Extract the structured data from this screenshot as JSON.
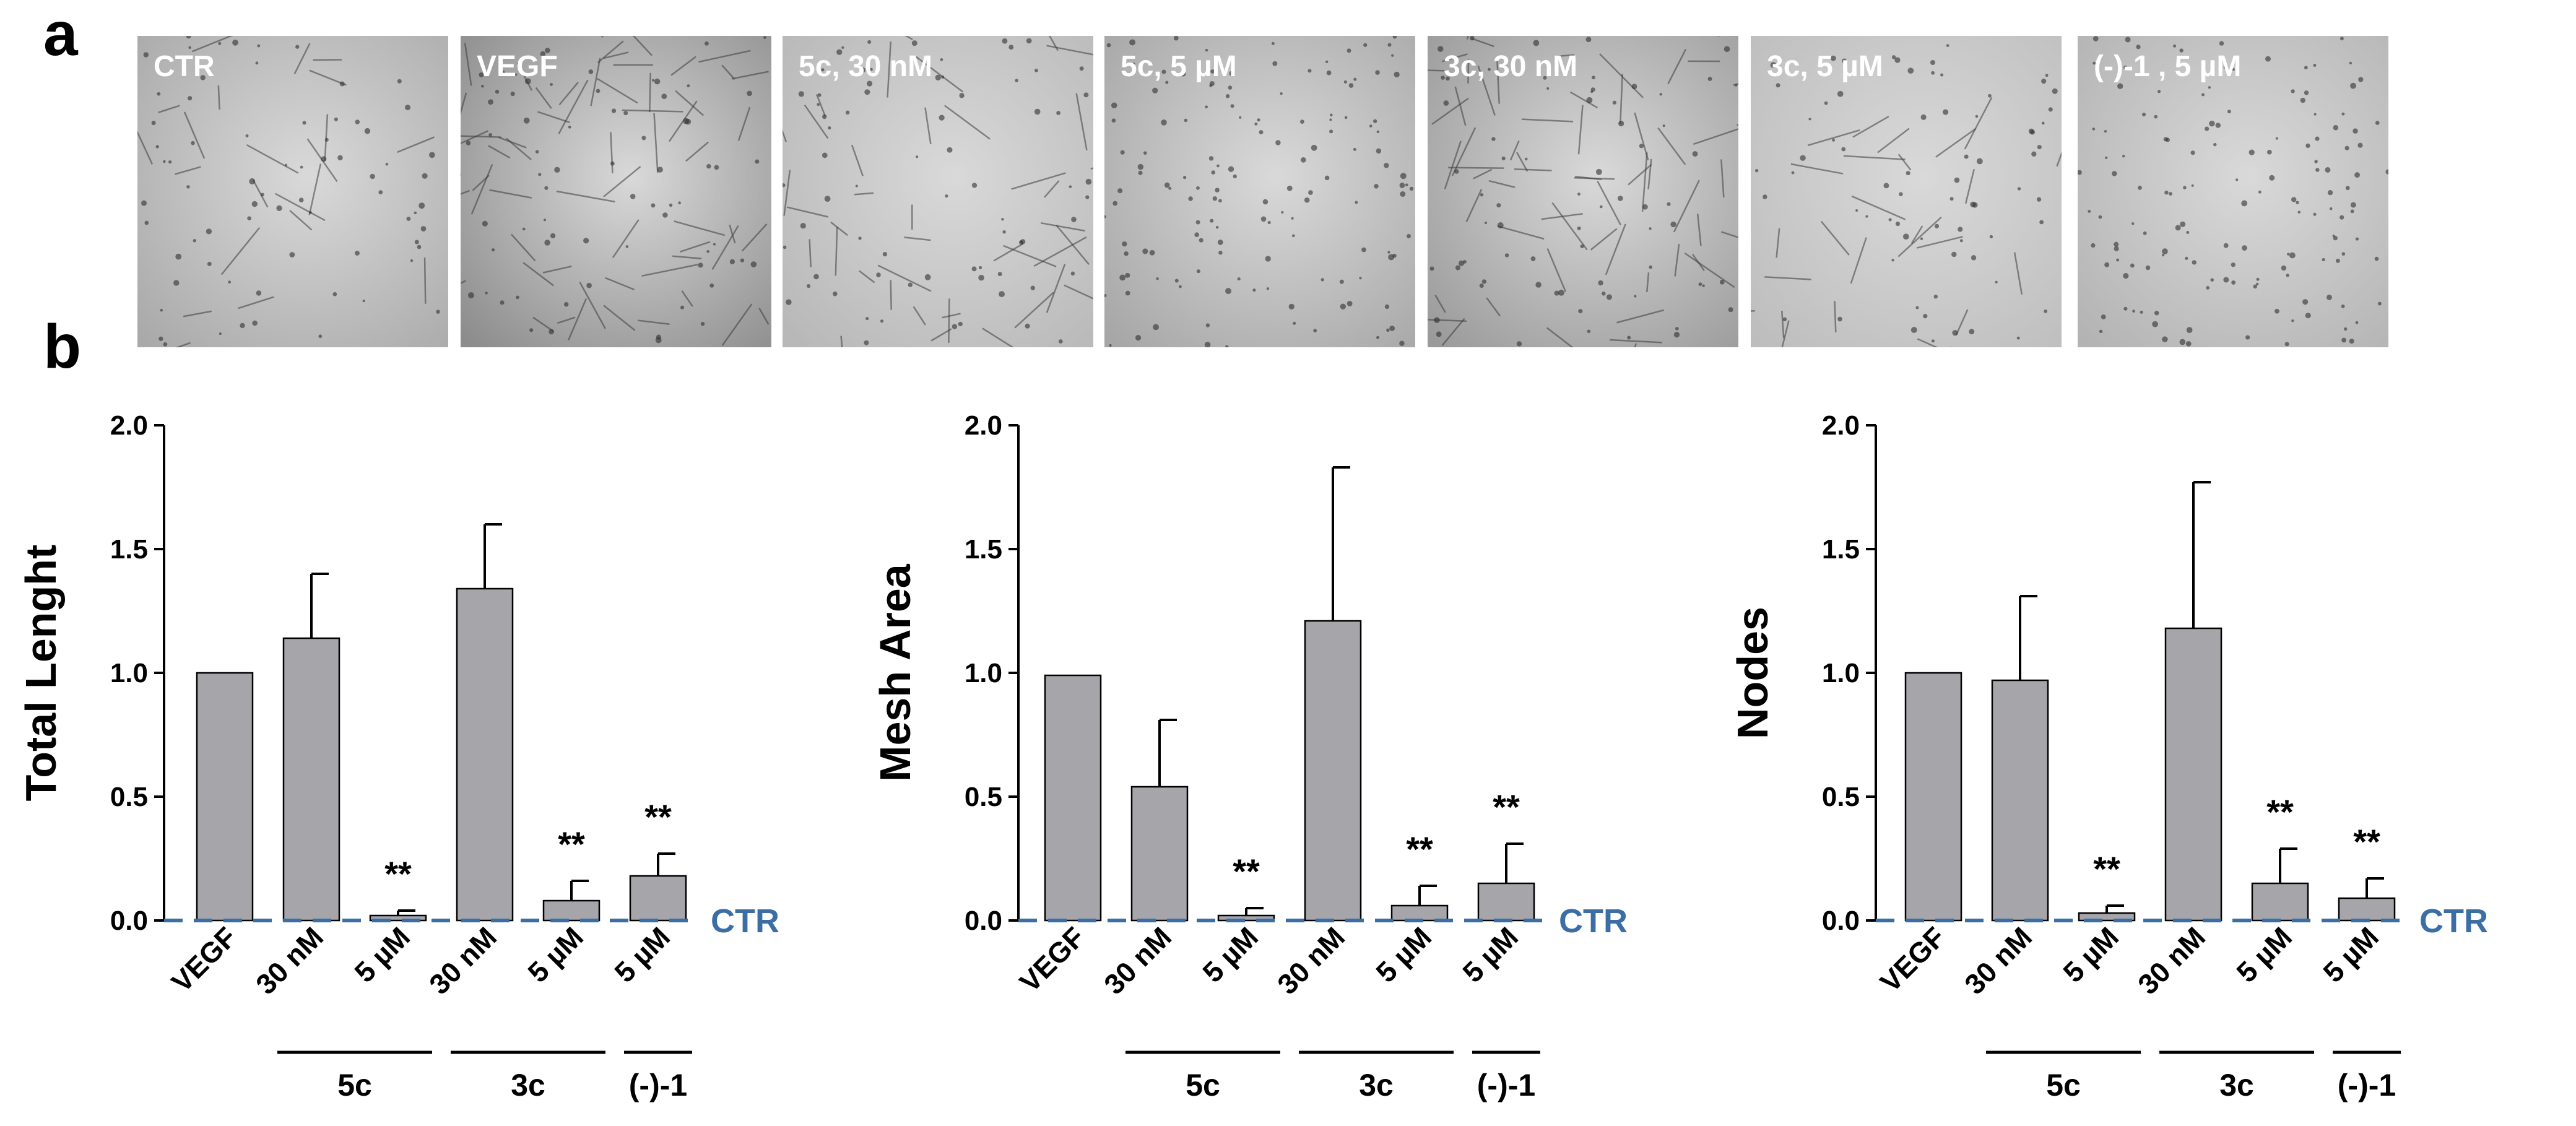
{
  "panel_labels": {
    "a": "a",
    "b": "b"
  },
  "photos": [
    {
      "label": "CTR",
      "tone": "#a9a9a9",
      "network": "sparse"
    },
    {
      "label": "VEGF",
      "tone": "#8c8c8c",
      "network": "dense"
    },
    {
      "label": "5c, 30 nM",
      "tone": "#b7b7b7",
      "network": "medium"
    },
    {
      "label": "5c, 5 µM",
      "tone": "#a6a6a6",
      "network": "dots"
    },
    {
      "label": "3c, 30 nM",
      "tone": "#9a9a9a",
      "network": "dense"
    },
    {
      "label": "3c, 5 µM",
      "tone": "#bdbdbd",
      "network": "partial"
    },
    {
      "label": "(-)-1 , 5 µM",
      "tone": "#b3b3b3",
      "network": "dots"
    }
  ],
  "colors": {
    "bar": "#a5a5aa",
    "ctr_line": "#3a6ea5"
  },
  "chart_data": [
    {
      "type": "bar",
      "ylabel": "Total Lenght",
      "ylim": [
        0,
        2.0
      ],
      "yticks": [
        "0.0",
        "0.5",
        "1.0",
        "1.5",
        "2.0"
      ],
      "reference_line": {
        "value": 0,
        "label": "CTR"
      },
      "categories": [
        "VEGF",
        "30 nM",
        "5 µM",
        "30 nM",
        "5 µM",
        "5 µM"
      ],
      "groups": [
        {
          "label": "5c",
          "span": [
            1,
            2
          ]
        },
        {
          "label": "3c",
          "span": [
            3,
            4
          ]
        },
        {
          "label": "(-)-1",
          "span": [
            5,
            5
          ]
        }
      ],
      "values": [
        1.0,
        1.14,
        0.02,
        1.34,
        0.08,
        0.18
      ],
      "errors": [
        0,
        0.26,
        0.02,
        0.26,
        0.08,
        0.09
      ],
      "significance": [
        "",
        "",
        "**",
        "",
        "**",
        "**"
      ]
    },
    {
      "type": "bar",
      "ylabel": "Mesh Area",
      "ylim": [
        0,
        2.0
      ],
      "yticks": [
        "0.0",
        "0.5",
        "1.0",
        "1.5",
        "2.0"
      ],
      "reference_line": {
        "value": 0,
        "label": "CTR"
      },
      "categories": [
        "VEGF",
        "30 nM",
        "5 µM",
        "30 nM",
        "5 µM",
        "5 µM"
      ],
      "groups": [
        {
          "label": "5c",
          "span": [
            1,
            2
          ]
        },
        {
          "label": "3c",
          "span": [
            3,
            4
          ]
        },
        {
          "label": "(-)-1",
          "span": [
            5,
            5
          ]
        }
      ],
      "values": [
        0.99,
        0.54,
        0.02,
        1.21,
        0.06,
        0.15
      ],
      "errors": [
        0,
        0.27,
        0.03,
        0.62,
        0.08,
        0.16
      ],
      "significance": [
        "",
        "",
        "**",
        "",
        "**",
        "**"
      ]
    },
    {
      "type": "bar",
      "ylabel": "Nodes",
      "ylim": [
        0,
        2.0
      ],
      "yticks": [
        "0.0",
        "0.5",
        "1.0",
        "1.5",
        "2.0"
      ],
      "reference_line": {
        "value": 0,
        "label": "CTR"
      },
      "categories": [
        "VEGF",
        "30 nM",
        "5 µM",
        "30 nM",
        "5 µM",
        "5 µM"
      ],
      "groups": [
        {
          "label": "5c",
          "span": [
            1,
            2
          ]
        },
        {
          "label": "3c",
          "span": [
            3,
            4
          ]
        },
        {
          "label": "(-)-1",
          "span": [
            5,
            5
          ]
        }
      ],
      "values": [
        1.0,
        0.97,
        0.03,
        1.18,
        0.15,
        0.09
      ],
      "errors": [
        0,
        0.34,
        0.03,
        0.59,
        0.14,
        0.08
      ],
      "significance": [
        "",
        "",
        "**",
        "",
        "**",
        "**"
      ]
    }
  ]
}
